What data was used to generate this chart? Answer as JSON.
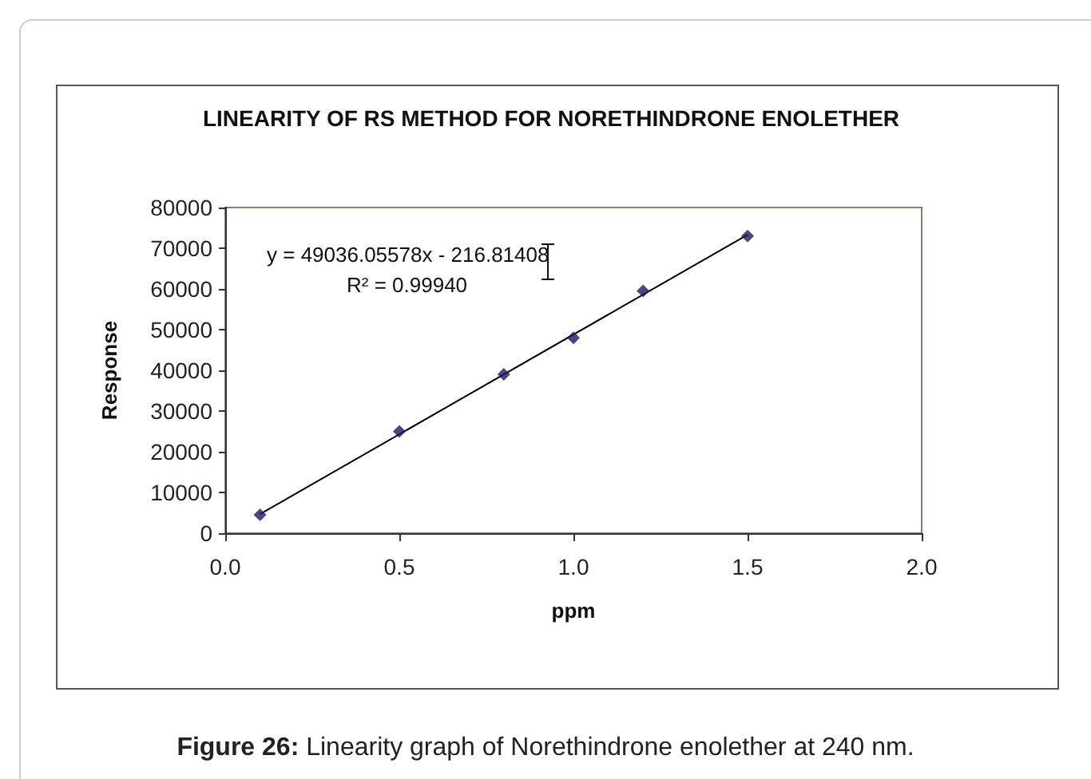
{
  "chart_data": {
    "type": "scatter",
    "title": "LINEARITY OF RS METHOD FOR NORETHINDRONE ENOLETHER",
    "xlabel": "ppm",
    "ylabel": "Response",
    "x": [
      0.1,
      0.5,
      0.8,
      1.0,
      1.2,
      1.5
    ],
    "series": [
      {
        "color": "#1c1c5c",
        "values": [
          4500,
          25000,
          39000,
          48000,
          59500,
          73000
        ]
      },
      {
        "type": "line",
        "color": "#000000",
        "marker": "none",
        "x": [
          0.1,
          1.5
        ],
        "values": [
          4700,
          73300
        ]
      }
    ],
    "xlim": [
      0,
      2
    ],
    "xticks": [
      {
        "value": 0,
        "label": "0.0"
      },
      {
        "value": 0.5,
        "label": "0.5"
      },
      {
        "value": 1,
        "label": "1.0"
      },
      {
        "value": 1.5,
        "label": "1.5"
      },
      {
        "value": 2,
        "label": "2.0"
      }
    ],
    "ylim": [
      0,
      80000
    ],
    "yticks": [
      0,
      10000,
      20000,
      30000,
      40000,
      50000,
      60000,
      70000,
      80000
    ],
    "marker": "diamond",
    "grid": false,
    "annotations": [
      "y = 49036.05578x - 216.81408",
      "R² = 0.99940",
      "Figure 26: Linearity graph of Norethindrone enolether at 240 nm."
    ]
  }
}
